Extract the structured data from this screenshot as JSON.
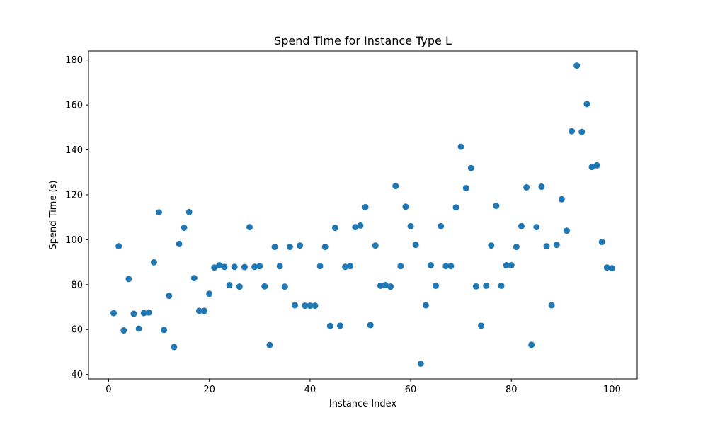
{
  "chart_data": {
    "type": "scatter",
    "title": "Spend Time for Instance Type L",
    "xlabel": "Instance Index",
    "ylabel": "Spend Time (s)",
    "xlim": [
      -4,
      105
    ],
    "ylim": [
      38,
      184
    ],
    "xticks": [
      0,
      20,
      40,
      60,
      80,
      100
    ],
    "yticks": [
      40,
      60,
      80,
      100,
      120,
      140,
      160,
      180
    ],
    "grid": false,
    "legend": "none",
    "marker_color": "#1f77b4",
    "series": [
      {
        "x": [
          1,
          2,
          3,
          4,
          5,
          6,
          7,
          8,
          9,
          10,
          11,
          12,
          13,
          14,
          15,
          16,
          17,
          18,
          19,
          20,
          21,
          22,
          23,
          24,
          25,
          26,
          27,
          28,
          29,
          30,
          31,
          32,
          33,
          34,
          35,
          36,
          37,
          38,
          39,
          40,
          41,
          42,
          43,
          44,
          45,
          46,
          47,
          48,
          49,
          50,
          51,
          52,
          53,
          54,
          55,
          56,
          57,
          58,
          59,
          60,
          61,
          62,
          63,
          64,
          65,
          66,
          67,
          68,
          69,
          70,
          71,
          72,
          73,
          74,
          75,
          76,
          77,
          78,
          79,
          80,
          81,
          82,
          83,
          84,
          85,
          86,
          87,
          88,
          89,
          90,
          91,
          92,
          93,
          94,
          95,
          96,
          97,
          98,
          99,
          100
        ],
        "y": [
          67.3,
          97.1,
          59.6,
          82.5,
          67.0,
          60.4,
          67.3,
          67.6,
          89.9,
          112.2,
          59.8,
          75.0,
          52.2,
          98.1,
          105.3,
          112.3,
          82.9,
          68.3,
          68.3,
          75.9,
          87.6,
          88.6,
          87.9,
          79.8,
          87.9,
          79.1,
          87.8,
          105.6,
          87.9,
          88.2,
          79.2,
          53.1,
          96.8,
          88.2,
          79.1,
          96.8,
          70.8,
          97.4,
          70.6,
          70.6,
          70.6,
          88.2,
          96.8,
          61.6,
          105.3,
          61.7,
          87.9,
          88.2,
          105.6,
          106.3,
          114.5,
          62.0,
          97.4,
          79.5,
          79.8,
          79.1,
          123.9,
          88.2,
          114.7,
          106.0,
          97.7,
          44.8,
          70.8,
          88.6,
          79.5,
          106.0,
          88.2,
          88.2,
          114.4,
          141.4,
          123.0,
          131.9,
          79.2,
          61.7,
          79.5,
          97.4,
          115.1,
          79.5,
          88.6,
          88.6,
          96.8,
          106.0,
          123.3,
          53.2,
          105.6,
          123.6,
          97.1,
          70.8,
          97.7,
          118.0,
          104.0,
          148.3,
          177.5,
          148.0,
          160.4,
          132.4,
          133.1,
          99.0,
          87.6,
          87.3
        ]
      }
    ]
  }
}
